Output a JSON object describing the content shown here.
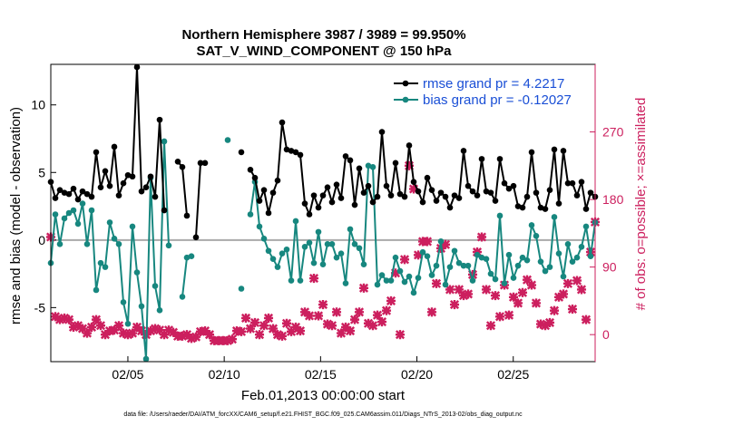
{
  "chart_data": {
    "type": "line",
    "title": "Northern Hemisphere 3987 / 3989 = 99.950%",
    "subtitle": "SAT_V_WIND_COMPONENT @ 150 hPa",
    "xlabel": "Feb.01,2013 00:00:00 start",
    "ylabel_left": "rmse and bias (model - observation)",
    "ylabel_right": "# of obs: o=possible; ×=assimilated",
    "footer": "data file: /Users/raeder/DAI/ATM_forcXX/CAM6_setup/f.e21.FHIST_BGC.f09_025.CAM6assim.011/Diags_NTrS_2013-02/obs_diag_output.nc",
    "x_range_days": [
      1.0,
      29.25
    ],
    "ylim_left": [
      -9,
      13
    ],
    "ylim_right": [
      -36,
      360
    ],
    "x_ticks": [
      {
        "day": 5,
        "label": "02/05"
      },
      {
        "day": 10,
        "label": "02/10"
      },
      {
        "day": 15,
        "label": "02/15"
      },
      {
        "day": 20,
        "label": "02/20"
      },
      {
        "day": 25,
        "label": "02/25"
      }
    ],
    "y_ticks_left": [
      {
        "value": 10,
        "label": "10"
      },
      {
        "value": 5,
        "label": "5"
      },
      {
        "value": 0,
        "label": "0"
      },
      {
        "value": -5,
        "label": "-5"
      }
    ],
    "y_ticks_right": [
      {
        "value": 270,
        "label": "270"
      },
      {
        "value": 180,
        "label": "180"
      },
      {
        "value": 90,
        "label": "90"
      },
      {
        "value": 0,
        "label": "0"
      }
    ],
    "zero_line": 0,
    "colors": {
      "rmse": "#000000",
      "bias": "#17877f",
      "obs": "#cc1f5e",
      "zero": "#aaaaaa",
      "legend_text": "#1a4fd6"
    },
    "series": [
      {
        "name": "rmse grand pr = 4.2217",
        "axis": "left",
        "values": [
          4.3,
          3.1,
          3.7,
          3.5,
          3.4,
          3.8,
          3.0,
          3.6,
          3.4,
          3.2,
          6.5,
          3.9,
          5.1,
          4.0,
          6.9,
          3.3,
          4.2,
          4.8,
          4.7,
          12.8,
          3.6,
          3.9,
          4.7,
          3.2,
          8.9,
          2.2,
          null,
          null,
          5.8,
          5.4,
          1.8,
          null,
          0.2,
          5.7,
          5.7,
          null,
          null,
          null,
          null,
          null,
          null,
          null,
          6.5,
          null,
          5.2,
          4.6,
          2.9,
          3.7,
          2.0,
          3.5,
          4.4,
          8.7,
          6.7,
          6.6,
          6.5,
          6.3,
          2.7,
          1.9,
          3.3,
          2.4,
          3.3,
          3.9,
          2.8,
          4.1,
          3.1,
          6.2,
          5.9,
          2.6,
          5.3,
          3.5,
          4.0,
          2.8,
          3.2,
          8.0,
          4.0,
          3.3,
          5.7,
          3.4,
          3.2,
          7.0,
          4.3,
          3.6,
          2.8,
          4.6,
          3.7,
          2.9,
          3.5,
          3.2,
          2.4,
          3.3,
          3.1,
          6.6,
          4.0,
          3.6,
          3.3,
          6.0,
          3.6,
          3.5,
          2.9,
          6.0,
          4.2,
          3.8,
          4.0,
          2.5,
          2.4,
          3.2,
          6.5,
          3.5,
          2.4,
          2.3,
          3.7,
          6.7,
          2.7,
          6.6,
          4.2,
          4.2,
          3.3,
          4.3,
          2.3,
          3.5,
          3.2
        ]
      },
      {
        "name": "bias grand pr = -0.12027",
        "axis": "left",
        "values": [
          -1.7,
          1.9,
          -0.3,
          1.6,
          2.0,
          2.2,
          1.2,
          2.7,
          -0.3,
          2.2,
          -3.7,
          -1.7,
          -2.0,
          1.3,
          0.1,
          -0.3,
          -4.6,
          -6.2,
          1.0,
          -2.4,
          -4.9,
          -8.8,
          4.6,
          -3.4,
          -5.2,
          7.3,
          -0.4,
          null,
          null,
          -4.2,
          -1.3,
          -1.2,
          null,
          null,
          null,
          null,
          null,
          null,
          null,
          7.4,
          null,
          null,
          -3.6,
          null,
          1.9,
          4.3,
          1.0,
          0.1,
          -0.8,
          -1.4,
          -2.0,
          -1.0,
          -0.7,
          -3.0,
          1.4,
          -3.0,
          -0.5,
          -0.2,
          -1.7,
          0.6,
          -1.8,
          -0.3,
          -0.3,
          -1.3,
          -1.0,
          -3.2,
          0.8,
          -0.3,
          -0.6,
          -1.8,
          5.5,
          5.4,
          -3.3,
          -2.6,
          -3.0,
          -3.0,
          -1.3,
          -2.3,
          -3.1,
          -2.7,
          -3.9,
          -2.8,
          -0.9,
          -1.2,
          -2.6,
          -1.9,
          -0.1,
          -3.3,
          -2.0,
          -0.8,
          -1.7,
          -1.9,
          -1.9,
          -3.0,
          -1.1,
          -1.3,
          -1.4,
          -2.5,
          -2.9,
          1.8,
          -3.2,
          -1.1,
          -2.8,
          -1.9,
          -1.3,
          -1.5,
          1.1,
          0.3,
          -1.6,
          -2.3,
          -2.0,
          1.7,
          -1.0,
          -2.7,
          -0.3,
          -1.6,
          -1.3,
          -0.5,
          1.0,
          -1.2,
          1.3
        ]
      },
      {
        "name": "obs assimilated",
        "axis": "right",
        "values": [
          130,
          24,
          20,
          22,
          20,
          10,
          12,
          8,
          2,
          10,
          20,
          12,
          0,
          5,
          6,
          12,
          2,
          0,
          2,
          10,
          5,
          0,
          5,
          8,
          6,
          0,
          6,
          3,
          -2,
          -2,
          0,
          -5,
          -3,
          4,
          5,
          0,
          -8,
          -8,
          -8,
          -8,
          -6,
          5,
          4,
          22,
          8,
          16,
          0,
          12,
          22,
          8,
          0,
          -2,
          15,
          4,
          10,
          5,
          30,
          25,
          75,
          25,
          40,
          14,
          12,
          30,
          2,
          10,
          5,
          20,
          30,
          62,
          15,
          12,
          26,
          17,
          32,
          45,
          82,
          0,
          100,
          225,
          194,
          106,
          124,
          124,
          30,
          68,
          115,
          120,
          60,
          40,
          60,
          52,
          54,
          80,
          110,
          130,
          60,
          12,
          52,
          24,
          66,
          26,
          50,
          42,
          56,
          73,
          66,
          42,
          14,
          12,
          16,
          32,
          50,
          54,
          68,
          34,
          72,
          60,
          20,
          110,
          150
        ]
      }
    ]
  }
}
